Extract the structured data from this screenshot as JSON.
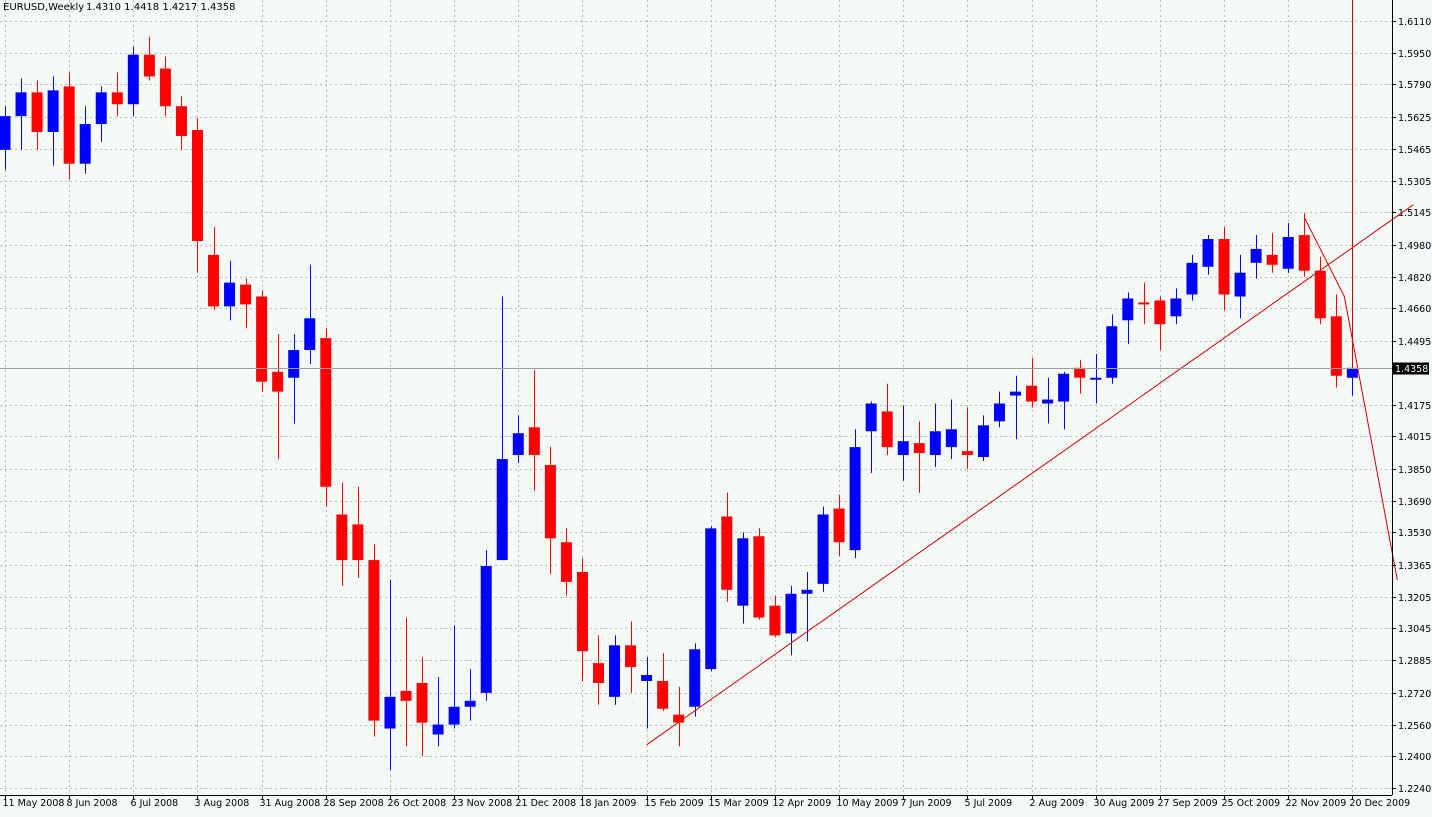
{
  "header": {
    "symbol": "EURUSD,Weekly",
    "ohlc": "1.4310 1.4418 1.4217 1.4358"
  },
  "chart_data": {
    "type": "candlestick",
    "title": "EURUSD,Weekly",
    "subtitle": "1.4310 1.4418 1.4217 1.4358",
    "xlabel": "",
    "ylabel": "",
    "ylim": [
      1.224,
      1.6237
    ],
    "grid": true,
    "colors": {
      "background": "#f4fbf6",
      "bull": "#0000ff",
      "bear": "#ff0000",
      "grid": "#b8bdb9",
      "trendline": "#d40000"
    },
    "y_ticks": [
      "1.6110",
      "1.5950",
      "1.5790",
      "1.5625",
      "1.5465",
      "1.5305",
      "1.5145",
      "1.4980",
      "1.4820",
      "1.4660",
      "1.4495",
      "1.4175",
      "1.4015",
      "1.3850",
      "1.3690",
      "1.3530",
      "1.3365",
      "1.3205",
      "1.3045",
      "1.2885",
      "1.2720",
      "1.2560",
      "1.2400",
      "1.2240"
    ],
    "current_price": "1.4358",
    "x_ticks": [
      {
        "label": "11 May 2008",
        "week": 0
      },
      {
        "label": "8 Jun 2008",
        "week": 4
      },
      {
        "label": "6 Jul 2008",
        "week": 8
      },
      {
        "label": "3 Aug 2008",
        "week": 12
      },
      {
        "label": "31 Aug 2008",
        "week": 16
      },
      {
        "label": "28 Sep 2008",
        "week": 20
      },
      {
        "label": "26 Oct 2008",
        "week": 24
      },
      {
        "label": "23 Nov 2008",
        "week": 28
      },
      {
        "label": "21 Dec 2008",
        "week": 32
      },
      {
        "label": "18 Jan 2009",
        "week": 36
      },
      {
        "label": "15 Feb 2009",
        "week": 40
      },
      {
        "label": "15 Mar 2009",
        "week": 44
      },
      {
        "label": "12 Apr 2009",
        "week": 48
      },
      {
        "label": "10 May 2009",
        "week": 52
      },
      {
        "label": "7 Jun 2009",
        "week": 56
      },
      {
        "label": "5 Jul 2009",
        "week": 60
      },
      {
        "label": "2 Aug 2009",
        "week": 64
      },
      {
        "label": "30 Aug 2009",
        "week": 68
      },
      {
        "label": "27 Sep 2009",
        "week": 72
      },
      {
        "label": "25 Oct 2009",
        "week": 76
      },
      {
        "label": "22 Nov 2009",
        "week": 80
      },
      {
        "label": "20 Dec 2009",
        "week": 84
      }
    ],
    "candles": [
      {
        "week": 0,
        "o": 1.546,
        "h": 1.568,
        "l": 1.536,
        "c": 1.563
      },
      {
        "week": 1,
        "o": 1.563,
        "h": 1.582,
        "l": 1.546,
        "c": 1.575
      },
      {
        "week": 2,
        "o": 1.575,
        "h": 1.581,
        "l": 1.546,
        "c": 1.555
      },
      {
        "week": 3,
        "o": 1.555,
        "h": 1.583,
        "l": 1.538,
        "c": 1.576
      },
      {
        "week": 4,
        "o": 1.578,
        "h": 1.585,
        "l": 1.531,
        "c": 1.539
      },
      {
        "week": 5,
        "o": 1.539,
        "h": 1.568,
        "l": 1.534,
        "c": 1.559
      },
      {
        "week": 6,
        "o": 1.559,
        "h": 1.578,
        "l": 1.55,
        "c": 1.575
      },
      {
        "week": 7,
        "o": 1.575,
        "h": 1.585,
        "l": 1.563,
        "c": 1.569
      },
      {
        "week": 8,
        "o": 1.569,
        "h": 1.598,
        "l": 1.563,
        "c": 1.594
      },
      {
        "week": 9,
        "o": 1.594,
        "h": 1.603,
        "l": 1.581,
        "c": 1.583
      },
      {
        "week": 10,
        "o": 1.587,
        "h": 1.593,
        "l": 1.563,
        "c": 1.568
      },
      {
        "week": 11,
        "o": 1.568,
        "h": 1.573,
        "l": 1.546,
        "c": 1.553
      },
      {
        "week": 12,
        "o": 1.556,
        "h": 1.562,
        "l": 1.484,
        "c": 1.5
      },
      {
        "week": 13,
        "o": 1.493,
        "h": 1.507,
        "l": 1.465,
        "c": 1.467
      },
      {
        "week": 14,
        "o": 1.467,
        "h": 1.49,
        "l": 1.46,
        "c": 1.479
      },
      {
        "week": 15,
        "o": 1.478,
        "h": 1.481,
        "l": 1.456,
        "c": 1.468
      },
      {
        "week": 16,
        "o": 1.472,
        "h": 1.475,
        "l": 1.424,
        "c": 1.429
      },
      {
        "week": 17,
        "o": 1.434,
        "h": 1.453,
        "l": 1.39,
        "c": 1.424
      },
      {
        "week": 18,
        "o": 1.431,
        "h": 1.453,
        "l": 1.408,
        "c": 1.445
      },
      {
        "week": 19,
        "o": 1.445,
        "h": 1.488,
        "l": 1.438,
        "c": 1.461
      },
      {
        "week": 20,
        "o": 1.451,
        "h": 1.456,
        "l": 1.366,
        "c": 1.376
      },
      {
        "week": 21,
        "o": 1.362,
        "h": 1.378,
        "l": 1.326,
        "c": 1.339
      },
      {
        "week": 22,
        "o": 1.357,
        "h": 1.376,
        "l": 1.33,
        "c": 1.339
      },
      {
        "week": 23,
        "o": 1.339,
        "h": 1.347,
        "l": 1.25,
        "c": 1.258
      },
      {
        "week": 24,
        "o": 1.254,
        "h": 1.329,
        "l": 1.233,
        "c": 1.27
      },
      {
        "week": 25,
        "o": 1.273,
        "h": 1.31,
        "l": 1.245,
        "c": 1.268
      },
      {
        "week": 26,
        "o": 1.277,
        "h": 1.29,
        "l": 1.24,
        "c": 1.257
      },
      {
        "week": 27,
        "o": 1.251,
        "h": 1.28,
        "l": 1.245,
        "c": 1.256
      },
      {
        "week": 28,
        "o": 1.256,
        "h": 1.306,
        "l": 1.254,
        "c": 1.265
      },
      {
        "week": 29,
        "o": 1.265,
        "h": 1.284,
        "l": 1.258,
        "c": 1.268
      },
      {
        "week": 30,
        "o": 1.272,
        "h": 1.344,
        "l": 1.268,
        "c": 1.336
      },
      {
        "week": 31,
        "o": 1.339,
        "h": 1.472,
        "l": 1.339,
        "c": 1.39
      },
      {
        "week": 32,
        "o": 1.392,
        "h": 1.412,
        "l": 1.388,
        "c": 1.403
      },
      {
        "week": 33,
        "o": 1.406,
        "h": 1.435,
        "l": 1.374,
        "c": 1.392
      },
      {
        "week": 34,
        "o": 1.387,
        "h": 1.396,
        "l": 1.332,
        "c": 1.35
      },
      {
        "week": 35,
        "o": 1.348,
        "h": 1.355,
        "l": 1.321,
        "c": 1.328
      },
      {
        "week": 36,
        "o": 1.333,
        "h": 1.34,
        "l": 1.278,
        "c": 1.293
      },
      {
        "week": 37,
        "o": 1.287,
        "h": 1.301,
        "l": 1.266,
        "c": 1.277
      },
      {
        "week": 38,
        "o": 1.27,
        "h": 1.301,
        "l": 1.266,
        "c": 1.296
      },
      {
        "week": 39,
        "o": 1.296,
        "h": 1.308,
        "l": 1.272,
        "c": 1.285
      },
      {
        "week": 40,
        "o": 1.278,
        "h": 1.29,
        "l": 1.254,
        "c": 1.281
      },
      {
        "week": 41,
        "o": 1.278,
        "h": 1.292,
        "l": 1.263,
        "c": 1.264
      },
      {
        "week": 42,
        "o": 1.261,
        "h": 1.275,
        "l": 1.245,
        "c": 1.257
      },
      {
        "week": 43,
        "o": 1.265,
        "h": 1.297,
        "l": 1.26,
        "c": 1.294
      },
      {
        "week": 44,
        "o": 1.284,
        "h": 1.356,
        "l": 1.283,
        "c": 1.355
      },
      {
        "week": 45,
        "o": 1.361,
        "h": 1.373,
        "l": 1.318,
        "c": 1.324
      },
      {
        "week": 46,
        "o": 1.316,
        "h": 1.353,
        "l": 1.307,
        "c": 1.35
      },
      {
        "week": 47,
        "o": 1.351,
        "h": 1.355,
        "l": 1.309,
        "c": 1.31
      },
      {
        "week": 48,
        "o": 1.316,
        "h": 1.321,
        "l": 1.3,
        "c": 1.301
      },
      {
        "week": 49,
        "o": 1.302,
        "h": 1.326,
        "l": 1.291,
        "c": 1.322
      },
      {
        "week": 50,
        "o": 1.322,
        "h": 1.333,
        "l": 1.298,
        "c": 1.324
      },
      {
        "week": 51,
        "o": 1.327,
        "h": 1.366,
        "l": 1.323,
        "c": 1.362
      },
      {
        "week": 52,
        "o": 1.365,
        "h": 1.372,
        "l": 1.341,
        "c": 1.348
      },
      {
        "week": 53,
        "o": 1.344,
        "h": 1.405,
        "l": 1.34,
        "c": 1.396
      },
      {
        "week": 54,
        "o": 1.404,
        "h": 1.419,
        "l": 1.383,
        "c": 1.418
      },
      {
        "week": 55,
        "o": 1.414,
        "h": 1.428,
        "l": 1.392,
        "c": 1.396
      },
      {
        "week": 56,
        "o": 1.392,
        "h": 1.417,
        "l": 1.379,
        "c": 1.399
      },
      {
        "week": 57,
        "o": 1.398,
        "h": 1.409,
        "l": 1.373,
        "c": 1.393
      },
      {
        "week": 58,
        "o": 1.392,
        "h": 1.418,
        "l": 1.386,
        "c": 1.404
      },
      {
        "week": 59,
        "o": 1.396,
        "h": 1.42,
        "l": 1.39,
        "c": 1.405
      },
      {
        "week": 60,
        "o": 1.394,
        "h": 1.416,
        "l": 1.385,
        "c": 1.392
      },
      {
        "week": 61,
        "o": 1.391,
        "h": 1.412,
        "l": 1.389,
        "c": 1.407
      },
      {
        "week": 62,
        "o": 1.409,
        "h": 1.424,
        "l": 1.406,
        "c": 1.418
      },
      {
        "week": 63,
        "o": 1.422,
        "h": 1.432,
        "l": 1.4,
        "c": 1.424
      },
      {
        "week": 64,
        "o": 1.427,
        "h": 1.441,
        "l": 1.416,
        "c": 1.419
      },
      {
        "week": 65,
        "o": 1.418,
        "h": 1.431,
        "l": 1.408,
        "c": 1.42
      },
      {
        "week": 66,
        "o": 1.419,
        "h": 1.434,
        "l": 1.405,
        "c": 1.433
      },
      {
        "week": 67,
        "o": 1.436,
        "h": 1.44,
        "l": 1.423,
        "c": 1.431
      },
      {
        "week": 68,
        "o": 1.43,
        "h": 1.443,
        "l": 1.418,
        "c": 1.431
      },
      {
        "week": 69,
        "o": 1.431,
        "h": 1.463,
        "l": 1.428,
        "c": 1.457
      },
      {
        "week": 70,
        "o": 1.46,
        "h": 1.474,
        "l": 1.448,
        "c": 1.471
      },
      {
        "week": 71,
        "o": 1.469,
        "h": 1.479,
        "l": 1.458,
        "c": 1.468
      },
      {
        "week": 72,
        "o": 1.47,
        "h": 1.472,
        "l": 1.445,
        "c": 1.458
      },
      {
        "week": 73,
        "o": 1.462,
        "h": 1.476,
        "l": 1.458,
        "c": 1.471
      },
      {
        "week": 74,
        "o": 1.473,
        "h": 1.493,
        "l": 1.47,
        "c": 1.489
      },
      {
        "week": 75,
        "o": 1.487,
        "h": 1.503,
        "l": 1.483,
        "c": 1.501
      },
      {
        "week": 76,
        "o": 1.501,
        "h": 1.507,
        "l": 1.465,
        "c": 1.473
      },
      {
        "week": 77,
        "o": 1.472,
        "h": 1.493,
        "l": 1.461,
        "c": 1.484
      },
      {
        "week": 78,
        "o": 1.489,
        "h": 1.503,
        "l": 1.481,
        "c": 1.496
      },
      {
        "week": 79,
        "o": 1.493,
        "h": 1.504,
        "l": 1.484,
        "c": 1.488
      },
      {
        "week": 80,
        "o": 1.486,
        "h": 1.509,
        "l": 1.484,
        "c": 1.502
      },
      {
        "week": 81,
        "o": 1.503,
        "h": 1.514,
        "l": 1.482,
        "c": 1.485
      },
      {
        "week": 82,
        "o": 1.485,
        "h": 1.492,
        "l": 1.458,
        "c": 1.461
      },
      {
        "week": 83,
        "o": 1.462,
        "h": 1.473,
        "l": 1.426,
        "c": 1.432
      },
      {
        "week": 84,
        "o": 1.431,
        "h": 1.442,
        "l": 1.422,
        "c": 1.436
      }
    ],
    "trendlines": [
      {
        "from": {
          "week": 40,
          "price": 1.2458
        },
        "to": {
          "week": 87.8,
          "price": 1.5183
        }
      },
      {
        "from": {
          "week": 81,
          "price": 1.512
        },
        "to": {
          "week": 83.5,
          "price": 1.472
        }
      },
      {
        "from": {
          "week": 83.5,
          "price": 1.472
        },
        "to": {
          "week": 86.8,
          "price": 1.329
        }
      }
    ],
    "marker_line": {
      "week": 84
    }
  }
}
